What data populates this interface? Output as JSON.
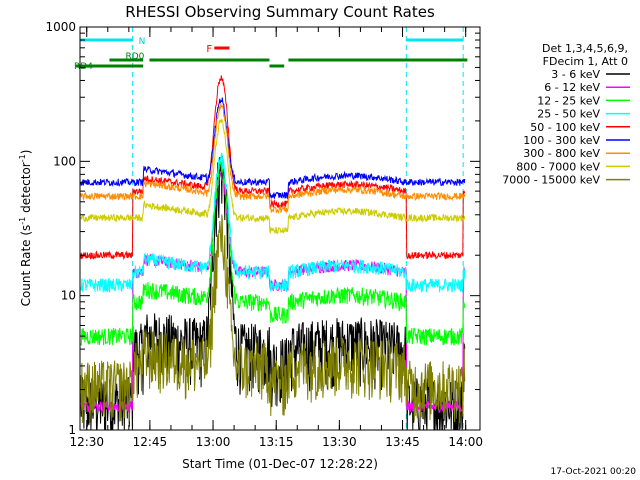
{
  "chart_data": {
    "type": "line",
    "title": "RHESSI Observing Summary Count Rates",
    "xlabel": "Start Time (01-Dec-07 12:28:22)",
    "ylabel_main": "Count Rate (s",
    "ylabel_sup1": "-1",
    "ylabel_mid": " detector",
    "ylabel_sup2": "-1",
    "ylabel_end": ")",
    "y_log": true,
    "ylim": [
      1,
      1000
    ],
    "xlim_minutes": [
      0,
      95
    ],
    "xticks": [
      {
        "label": "12:30",
        "t": 1.6
      },
      {
        "label": "12:45",
        "t": 16.6
      },
      {
        "label": "13:00",
        "t": 31.6
      },
      {
        "label": "13:15",
        "t": 46.6
      },
      {
        "label": "13:30",
        "t": 61.6
      },
      {
        "label": "13:45",
        "t": 76.6
      },
      {
        "label": "14:00",
        "t": 91.6
      }
    ],
    "yticks": [
      {
        "label": "1",
        "v": 1
      },
      {
        "label": "10",
        "v": 10
      },
      {
        "label": "100",
        "v": 100
      },
      {
        "label": "1000",
        "v": 1000
      }
    ],
    "legend_header": [
      "Det 1,3,4,5,6,9,",
      "FDecim 1, Att 0"
    ],
    "series": [
      {
        "name": "3 - 6 keV",
        "color": "#000000",
        "base": 4,
        "night": 1.6,
        "peak": 85,
        "jitter": 0.55
      },
      {
        "name": "6 - 12 keV",
        "color": "#ff00ff",
        "base": 15,
        "night": 1.5,
        "peak": 80,
        "jitter": 0.1
      },
      {
        "name": "12 - 25 keV",
        "color": "#00ff00",
        "base": 9,
        "night": 5,
        "peak": 90,
        "jitter": 0.15
      },
      {
        "name": "25 - 50 keV",
        "color": "#00ffff",
        "base": 15,
        "night": 12,
        "peak": 105,
        "jitter": 0.12
      },
      {
        "name": "50 - 100 keV",
        "color": "#ff0000",
        "base": 60,
        "night": 20,
        "peak": 420,
        "jitter": 0.06
      },
      {
        "name": "100 - 300 keV",
        "color": "#0000ff",
        "base": 70,
        "night": 70,
        "peak": 290,
        "jitter": 0.06
      },
      {
        "name": "300 - 800 keV",
        "color": "#ff8c00",
        "base": 55,
        "night": 55,
        "peak": 260,
        "jitter": 0.06
      },
      {
        "name": "800 - 7000 keV",
        "color": "#cccc00",
        "base": 38,
        "night": 38,
        "peak": 200,
        "jitter": 0.06
      },
      {
        "name": "7000 - 15000 keV",
        "color": "#808000",
        "base": 3,
        "night": 2.2,
        "peak": 28,
        "jitter": 0.5
      }
    ],
    "flare_peak_minutes": 33.5,
    "intervals": {
      "night": [
        {
          "label": "N",
          "start": 0,
          "end": 12.5
        },
        {
          "label": "",
          "start": 77.5,
          "end": 91
        }
      ],
      "flare": {
        "label": "F",
        "start": 30,
        "end": 35.5
      },
      "rd0": {
        "label": "RD0",
        "start": 7,
        "end": 15
      },
      "rd4": {
        "label": "RD4",
        "start": 0,
        "end": 15
      },
      "data_gaps": [
        {
          "start": 45,
          "end": 48.5
        },
        {
          "start": 48.5,
          "end": 50
        }
      ]
    },
    "timestamp": "17-Oct-2021 00:20"
  }
}
